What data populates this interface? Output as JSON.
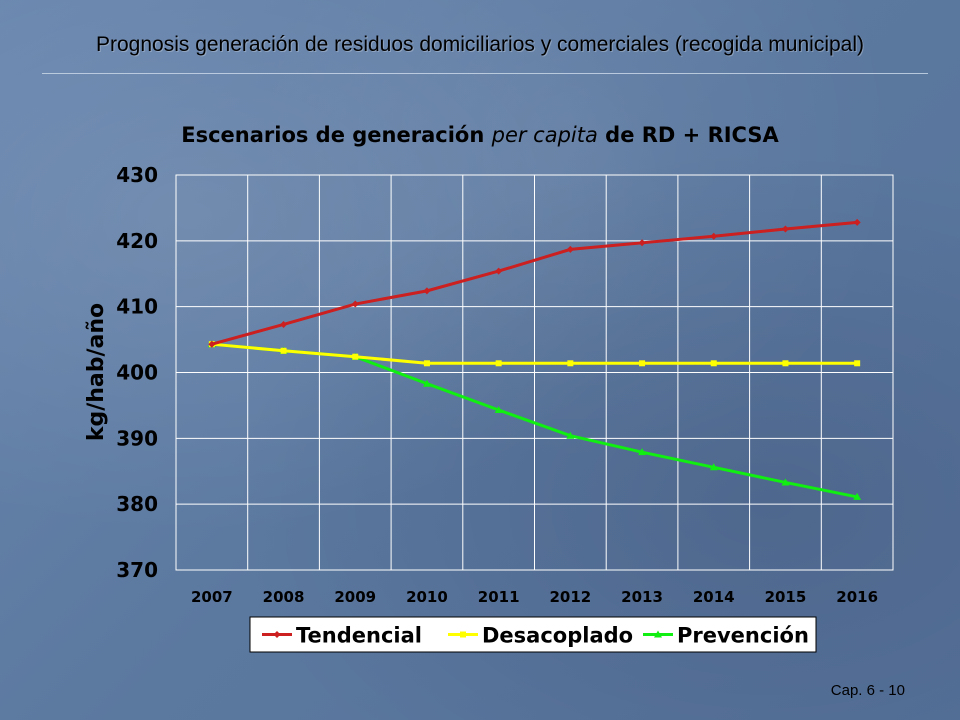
{
  "slide": {
    "title": "Prognosis generación de residuos domiciliarios y comerciales (recogida municipal)",
    "page_number": "Cap. 6 - 10"
  },
  "chart_data": {
    "type": "line",
    "title_parts": [
      {
        "text": "Escenarios de generación ",
        "italic": false
      },
      {
        "text": "per capita",
        "italic": true
      },
      {
        "text": " de RD + RICSA",
        "italic": false
      }
    ],
    "xlabel": "",
    "ylabel": "kg/hab/año",
    "categories": [
      "2007",
      "2008",
      "2009",
      "2010",
      "2011",
      "2012",
      "2013",
      "2014",
      "2015",
      "2016"
    ],
    "ylim": [
      370,
      430
    ],
    "yticks": [
      370,
      380,
      390,
      400,
      410,
      420,
      430
    ],
    "grid": true,
    "legend_position": "bottom",
    "series": [
      {
        "name": "Tendencial",
        "color": "#cc1f1f",
        "marker": "diamond",
        "values": [
          404.3,
          407.3,
          410.4,
          412.4,
          415.4,
          418.7,
          419.7,
          420.7,
          421.8,
          422.8
        ]
      },
      {
        "name": "Desacoplado",
        "color": "#ffff00",
        "marker": "square",
        "values": [
          404.3,
          403.3,
          402.4,
          401.4,
          401.4,
          401.4,
          401.4,
          401.4,
          401.4,
          401.4
        ]
      },
      {
        "name": "Prevención",
        "color": "#11ee11",
        "marker": "triangle",
        "values": [
          404.3,
          403.3,
          402.4,
          398.3,
          394.3,
          390.4,
          387.9,
          385.6,
          383.3,
          381.1
        ]
      }
    ]
  }
}
